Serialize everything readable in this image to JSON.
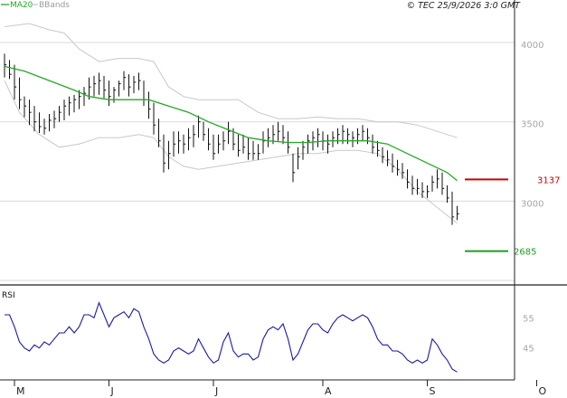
{
  "copyright": "© TEC 25/9/2026 3:0 GMT",
  "legend": {
    "ma_label": "MA20",
    "bb_label": "BBands",
    "ma_color": "#22aa22",
    "bb_color": "#c8c8c8"
  },
  "colors": {
    "price": "#111111",
    "ma": "#22aa22",
    "bbands": "#c8c8c8",
    "rsi": "#1a1aa8",
    "resistance": "#cc0000",
    "support": "#229922",
    "grid": "#d9d9d9",
    "axis": "#222222"
  },
  "chart_data": [
    {
      "type": "ohlc",
      "ylim": [
        2500,
        4200
      ],
      "yticks": [
        {
          "v": 4000,
          "label": "4000"
        },
        {
          "v": 3500,
          "label": "3500"
        },
        {
          "v": 3000,
          "label": "3000"
        }
      ],
      "months": [
        {
          "label": "M",
          "x": 3
        },
        {
          "label": "J",
          "x": 22
        },
        {
          "label": "J",
          "x": 43
        },
        {
          "label": "A",
          "x": 65
        },
        {
          "label": "S",
          "x": 86
        },
        {
          "label": "O",
          "x": 108
        }
      ],
      "xlim": [
        0,
        115
      ],
      "resistance": {
        "value": 3137,
        "label": "3137"
      },
      "support": {
        "value": 2685,
        "label": "2685"
      },
      "bars": [
        [
          1,
          3930,
          3780,
          3860
        ],
        [
          2,
          3890,
          3770,
          3800
        ],
        [
          3,
          3860,
          3640,
          3720
        ],
        [
          4,
          3780,
          3580,
          3640
        ],
        [
          5,
          3660,
          3530,
          3600
        ],
        [
          6,
          3640,
          3480,
          3560
        ],
        [
          7,
          3600,
          3440,
          3500
        ],
        [
          8,
          3560,
          3430,
          3470
        ],
        [
          9,
          3520,
          3420,
          3460
        ],
        [
          10,
          3550,
          3440,
          3510
        ],
        [
          11,
          3570,
          3460,
          3520
        ],
        [
          12,
          3600,
          3500,
          3560
        ],
        [
          13,
          3640,
          3510,
          3600
        ],
        [
          14,
          3660,
          3540,
          3620
        ],
        [
          15,
          3670,
          3560,
          3640
        ],
        [
          16,
          3700,
          3580,
          3660
        ],
        [
          17,
          3720,
          3600,
          3680
        ],
        [
          18,
          3780,
          3640,
          3720
        ],
        [
          19,
          3790,
          3660,
          3740
        ],
        [
          20,
          3810,
          3670,
          3760
        ],
        [
          21,
          3790,
          3650,
          3700
        ],
        [
          22,
          3760,
          3600,
          3660
        ],
        [
          23,
          3720,
          3620,
          3700
        ],
        [
          24,
          3760,
          3660,
          3740
        ],
        [
          25,
          3820,
          3700,
          3780
        ],
        [
          26,
          3800,
          3660,
          3720
        ],
        [
          27,
          3790,
          3680,
          3750
        ],
        [
          28,
          3810,
          3700,
          3760
        ],
        [
          29,
          3760,
          3600,
          3640
        ],
        [
          30,
          3690,
          3520,
          3580
        ],
        [
          31,
          3620,
          3420,
          3480
        ],
        [
          32,
          3520,
          3340,
          3380
        ],
        [
          33,
          3420,
          3180,
          3240
        ],
        [
          34,
          3380,
          3200,
          3300
        ],
        [
          35,
          3440,
          3280,
          3360
        ],
        [
          36,
          3440,
          3300,
          3380
        ],
        [
          37,
          3420,
          3300,
          3360
        ],
        [
          38,
          3460,
          3320,
          3400
        ],
        [
          39,
          3480,
          3340,
          3420
        ],
        [
          40,
          3540,
          3400,
          3500
        ],
        [
          41,
          3500,
          3380,
          3420
        ],
        [
          42,
          3460,
          3320,
          3360
        ],
        [
          43,
          3420,
          3260,
          3300
        ],
        [
          44,
          3420,
          3300,
          3360
        ],
        [
          45,
          3440,
          3320,
          3380
        ],
        [
          46,
          3500,
          3360,
          3440
        ],
        [
          47,
          3460,
          3320,
          3360
        ],
        [
          48,
          3420,
          3280,
          3320
        ],
        [
          49,
          3420,
          3300,
          3340
        ],
        [
          50,
          3400,
          3260,
          3300
        ],
        [
          51,
          3380,
          3260,
          3300
        ],
        [
          52,
          3360,
          3260,
          3300
        ],
        [
          53,
          3440,
          3300,
          3380
        ],
        [
          54,
          3460,
          3340,
          3400
        ],
        [
          55,
          3480,
          3360,
          3420
        ],
        [
          56,
          3500,
          3380,
          3440
        ],
        [
          57,
          3480,
          3360,
          3400
        ],
        [
          58,
          3440,
          3300,
          3340
        ],
        [
          59,
          3300,
          3120,
          3180
        ],
        [
          60,
          3340,
          3200,
          3280
        ],
        [
          61,
          3380,
          3260,
          3340
        ],
        [
          62,
          3420,
          3300,
          3380
        ],
        [
          63,
          3440,
          3320,
          3400
        ],
        [
          64,
          3460,
          3340,
          3420
        ],
        [
          65,
          3440,
          3320,
          3380
        ],
        [
          66,
          3420,
          3300,
          3360
        ],
        [
          67,
          3440,
          3340,
          3400
        ],
        [
          68,
          3460,
          3360,
          3420
        ],
        [
          69,
          3480,
          3360,
          3440
        ],
        [
          70,
          3460,
          3360,
          3420
        ],
        [
          71,
          3440,
          3340,
          3400
        ],
        [
          72,
          3460,
          3360,
          3420
        ],
        [
          73,
          3480,
          3380,
          3440
        ],
        [
          74,
          3460,
          3360,
          3400
        ],
        [
          75,
          3420,
          3300,
          3340
        ],
        [
          76,
          3380,
          3280,
          3320
        ],
        [
          77,
          3340,
          3240,
          3280
        ],
        [
          78,
          3320,
          3220,
          3260
        ],
        [
          79,
          3300,
          3180,
          3220
        ],
        [
          80,
          3260,
          3160,
          3200
        ],
        [
          81,
          3240,
          3140,
          3180
        ],
        [
          82,
          3200,
          3080,
          3120
        ],
        [
          83,
          3160,
          3040,
          3080
        ],
        [
          84,
          3140,
          3040,
          3080
        ],
        [
          85,
          3120,
          3020,
          3060
        ],
        [
          86,
          3100,
          3020,
          3060
        ],
        [
          87,
          3160,
          3060,
          3120
        ],
        [
          88,
          3200,
          3080,
          3140
        ],
        [
          89,
          3180,
          3040,
          3080
        ],
        [
          90,
          3100,
          2990,
          3020
        ],
        [
          91,
          3060,
          2850,
          2900
        ],
        [
          92,
          2970,
          2880,
          2920
        ]
      ],
      "ma20": [
        [
          1,
          3850
        ],
        [
          5,
          3820
        ],
        [
          10,
          3760
        ],
        [
          15,
          3700
        ],
        [
          18,
          3660
        ],
        [
          22,
          3640
        ],
        [
          26,
          3640
        ],
        [
          30,
          3640
        ],
        [
          34,
          3600
        ],
        [
          38,
          3560
        ],
        [
          42,
          3500
        ],
        [
          46,
          3450
        ],
        [
          50,
          3400
        ],
        [
          54,
          3380
        ],
        [
          58,
          3370
        ],
        [
          62,
          3370
        ],
        [
          66,
          3380
        ],
        [
          70,
          3380
        ],
        [
          74,
          3380
        ],
        [
          78,
          3360
        ],
        [
          82,
          3300
        ],
        [
          86,
          3240
        ],
        [
          90,
          3180
        ],
        [
          92,
          3130
        ]
      ],
      "bb_upper": [
        [
          1,
          4100
        ],
        [
          6,
          4120
        ],
        [
          10,
          4080
        ],
        [
          13,
          4060
        ],
        [
          16,
          3960
        ],
        [
          20,
          3880
        ],
        [
          24,
          3900
        ],
        [
          28,
          3900
        ],
        [
          31,
          3880
        ],
        [
          34,
          3720
        ],
        [
          37,
          3660
        ],
        [
          40,
          3640
        ],
        [
          44,
          3640
        ],
        [
          48,
          3640
        ],
        [
          52,
          3560
        ],
        [
          56,
          3520
        ],
        [
          60,
          3520
        ],
        [
          64,
          3530
        ],
        [
          68,
          3520
        ],
        [
          72,
          3520
        ],
        [
          76,
          3500
        ],
        [
          80,
          3500
        ],
        [
          84,
          3480
        ],
        [
          88,
          3440
        ],
        [
          92,
          3400
        ]
      ],
      "bb_lower": [
        [
          1,
          3760
        ],
        [
          4,
          3560
        ],
        [
          8,
          3420
        ],
        [
          12,
          3340
        ],
        [
          16,
          3360
        ],
        [
          20,
          3400
        ],
        [
          24,
          3400
        ],
        [
          28,
          3420
        ],
        [
          31,
          3400
        ],
        [
          34,
          3280
        ],
        [
          37,
          3220
        ],
        [
          40,
          3200
        ],
        [
          44,
          3220
        ],
        [
          48,
          3240
        ],
        [
          52,
          3260
        ],
        [
          56,
          3280
        ],
        [
          60,
          3300
        ],
        [
          64,
          3300
        ],
        [
          68,
          3320
        ],
        [
          72,
          3320
        ],
        [
          76,
          3300
        ],
        [
          80,
          3200
        ],
        [
          84,
          3060
        ],
        [
          88,
          2960
        ],
        [
          92,
          2860
        ]
      ]
    },
    {
      "type": "line",
      "title": "RSI",
      "ylim": [
        35,
        65
      ],
      "yticks": [
        {
          "v": 55,
          "label": "55"
        },
        {
          "v": 45,
          "label": "45"
        }
      ],
      "x": [
        1,
        2,
        3,
        4,
        5,
        6,
        7,
        8,
        9,
        10,
        11,
        12,
        13,
        14,
        15,
        16,
        17,
        18,
        19,
        20,
        21,
        22,
        23,
        24,
        25,
        26,
        27,
        28,
        29,
        30,
        31,
        32,
        33,
        34,
        35,
        36,
        37,
        38,
        39,
        40,
        41,
        42,
        43,
        44,
        45,
        46,
        47,
        48,
        49,
        50,
        51,
        52,
        53,
        54,
        55,
        56,
        57,
        58,
        59,
        60,
        61,
        62,
        63,
        64,
        65,
        66,
        67,
        68,
        69,
        70,
        71,
        72,
        73,
        74,
        75,
        76,
        77,
        78,
        79,
        80,
        81,
        82,
        83,
        84,
        85,
        86,
        87,
        88,
        89,
        90,
        91,
        92
      ],
      "values": [
        56,
        56,
        52,
        47,
        45,
        44,
        46,
        45,
        47,
        46,
        48,
        50,
        50,
        52,
        50,
        52,
        56,
        56,
        55,
        60,
        56,
        52,
        55,
        56,
        57,
        55,
        58,
        57,
        52,
        48,
        43,
        41,
        40,
        41,
        44,
        45,
        44,
        43,
        44,
        48,
        45,
        42,
        40,
        41,
        47,
        50,
        44,
        42,
        43,
        43,
        41,
        42,
        48,
        51,
        52,
        51,
        53,
        48,
        41,
        43,
        47,
        51,
        53,
        53,
        51,
        50,
        53,
        55,
        56,
        55,
        54,
        55,
        56,
        55,
        52,
        48,
        46,
        46,
        44,
        44,
        43,
        41,
        40,
        41,
        40,
        41,
        48,
        46,
        43,
        41,
        38,
        37
      ]
    }
  ]
}
